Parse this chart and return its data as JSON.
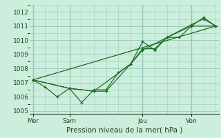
{
  "title": "Pression niveau de la mer( hPa )",
  "bg_color": "#cceedd",
  "grid_color": "#99ccbb",
  "line_color": "#1a6b1a",
  "dark_line_color": "#336633",
  "ylim": [
    1004.8,
    1012.5
  ],
  "yticks": [
    1005,
    1006,
    1007,
    1008,
    1009,
    1010,
    1011,
    1012
  ],
  "day_labels": [
    "Mer",
    "Sam",
    "Jeu",
    "Ven"
  ],
  "day_positions": [
    0,
    24,
    72,
    104
  ],
  "xlim": [
    -2,
    122
  ],
  "line1_x": [
    0,
    8,
    16,
    24,
    32,
    40,
    48,
    56,
    64,
    72,
    80,
    88,
    96,
    104,
    112,
    120
  ],
  "line1_y": [
    1007.2,
    1006.7,
    1006.0,
    1006.6,
    1005.6,
    1006.5,
    1006.5,
    1007.7,
    1008.3,
    1009.9,
    1009.3,
    1010.2,
    1010.2,
    1011.0,
    1011.6,
    1011.0
  ],
  "line2_x": [
    0,
    24,
    40,
    48,
    64,
    72,
    80,
    88,
    104,
    112,
    120
  ],
  "line2_y": [
    1007.2,
    1006.6,
    1006.4,
    1006.4,
    1008.3,
    1009.4,
    1009.4,
    1010.2,
    1011.1,
    1011.5,
    1011.0
  ],
  "line3_x": [
    0,
    120
  ],
  "line3_y": [
    1007.2,
    1011.0
  ],
  "line4_x": [
    0,
    24,
    40,
    64,
    72,
    88,
    104,
    120
  ],
  "line4_y": [
    1007.2,
    1006.6,
    1006.4,
    1008.3,
    1009.3,
    1010.2,
    1011.0,
    1011.0
  ]
}
